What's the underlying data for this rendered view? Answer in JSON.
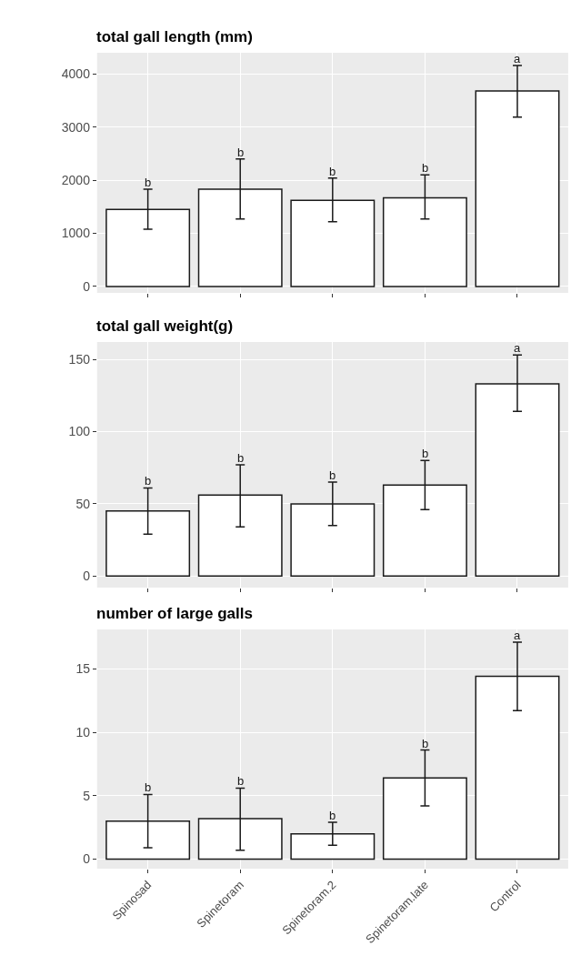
{
  "chart_data": [
    {
      "type": "bar",
      "title": "total gall length (mm)",
      "categories": [
        "Spinosad",
        "Spinetoram",
        "Spinetoram.2",
        "Spinetoram.late",
        "Control"
      ],
      "values": [
        1450,
        1830,
        1620,
        1670,
        3680
      ],
      "errors": [
        [
          1080,
          1830
        ],
        [
          1270,
          2400
        ],
        [
          1220,
          2040
        ],
        [
          1270,
          2100
        ],
        [
          3190,
          4160
        ]
      ],
      "color": "#ffffff",
      "ylim": [
        -120,
        4400
      ],
      "yticks": [
        0,
        1000,
        2000,
        3000,
        4000
      ],
      "grid": true,
      "tick_labels": "y",
      "annotations": [
        {
          "text": "b",
          "x": "Spinosad",
          "y": 1830
        },
        {
          "text": "b",
          "x": "Spinetoram",
          "y": 2400
        },
        {
          "text": "b",
          "x": "Spinetoram.2",
          "y": 2040
        },
        {
          "text": "b",
          "x": "Spinetoram.late",
          "y": 2100
        },
        {
          "text": "a",
          "x": "Control",
          "y": 4160
        }
      ]
    },
    {
      "type": "bar",
      "title": "total gall weight(g)",
      "categories": [
        "Spinosad",
        "Spinetoram",
        "Spinetoram.2",
        "Spinetoram.late",
        "Control"
      ],
      "values": [
        45,
        56,
        50,
        63,
        133
      ],
      "errors": [
        [
          29,
          61
        ],
        [
          34,
          77
        ],
        [
          35,
          65
        ],
        [
          46,
          80
        ],
        [
          114,
          153
        ]
      ],
      "color": "#ffffff",
      "ylim": [
        -8,
        162
      ],
      "yticks": [
        0,
        50,
        100,
        150
      ],
      "grid": true,
      "tick_labels": "y",
      "annotations": [
        {
          "text": "b",
          "x": "Spinosad",
          "y": 61
        },
        {
          "text": "b",
          "x": "Spinetoram",
          "y": 77
        },
        {
          "text": "b",
          "x": "Spinetoram.2",
          "y": 65
        },
        {
          "text": "b",
          "x": "Spinetoram.late",
          "y": 80
        },
        {
          "text": "a",
          "x": "Control",
          "y": 153
        }
      ]
    },
    {
      "type": "bar",
      "title": "number of large galls",
      "categories": [
        "Spinosad",
        "Spinetoram",
        "Spinetoram.2",
        "Spinetoram.late",
        "Control"
      ],
      "values": [
        3.0,
        3.2,
        2.0,
        6.4,
        14.4
      ],
      "errors": [
        [
          0.9,
          5.1
        ],
        [
          0.7,
          5.6
        ],
        [
          1.1,
          2.9
        ],
        [
          4.2,
          8.6
        ],
        [
          11.7,
          17.1
        ]
      ],
      "color": "#ffffff",
      "ylim": [
        -0.75,
        18.1
      ],
      "yticks": [
        0,
        5,
        10,
        15
      ],
      "grid": true,
      "annotations": [
        {
          "text": "b",
          "x": "Spinosad",
          "y": 5.1
        },
        {
          "text": "b",
          "x": "Spinetoram",
          "y": 5.6
        },
        {
          "text": "b",
          "x": "Spinetoram.2",
          "y": 2.9
        },
        {
          "text": "b",
          "x": "Spinetoram.late",
          "y": 8.6
        },
        {
          "text": "a",
          "x": "Control",
          "y": 17.1
        }
      ]
    }
  ]
}
